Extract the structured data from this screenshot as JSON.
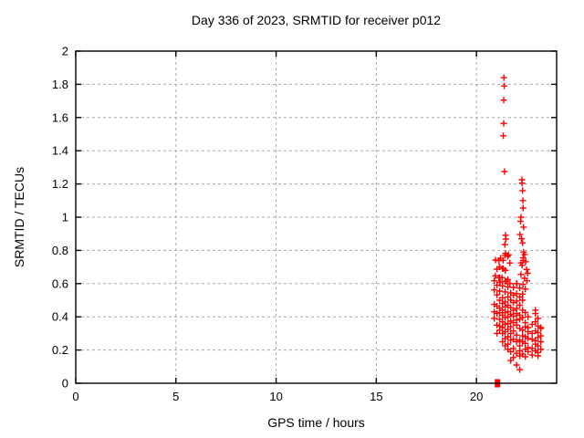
{
  "chart_data": {
    "type": "scatter",
    "title": "Day 336 of 2023, SRMTID for receiver p012",
    "xlabel": "GPS time / hours",
    "ylabel": "SRMTID / TECUs",
    "xlim": [
      0,
      24
    ],
    "ylim": [
      0,
      2
    ],
    "grid": true,
    "legend": "none",
    "marker": "plus",
    "marker_color": "#ff0000",
    "grid_color": "#a8a8a8",
    "axis_color": "#000000",
    "x_ticks": [
      {
        "value": 0,
        "label": "0"
      },
      {
        "value": 5,
        "label": "5"
      },
      {
        "value": 10,
        "label": "10"
      },
      {
        "value": 15,
        "label": "15"
      },
      {
        "value": 20,
        "label": "20"
      }
    ],
    "y_ticks": [
      {
        "value": 0,
        "label": "0"
      },
      {
        "value": 0.2,
        "label": "0.2"
      },
      {
        "value": 0.4,
        "label": "0.4"
      },
      {
        "value": 0.6,
        "label": "0.6"
      },
      {
        "value": 0.8,
        "label": "0.8"
      },
      {
        "value": 1,
        "label": "1"
      },
      {
        "value": 1.2,
        "label": "1.2"
      },
      {
        "value": 1.4,
        "label": "1.4"
      },
      {
        "value": 1.6,
        "label": "1.6"
      },
      {
        "value": 1.8,
        "label": "1.8"
      },
      {
        "value": 2,
        "label": "2"
      }
    ],
    "zero_marker": [
      21.05,
      0.0
    ],
    "series": [
      {
        "name": "SRMTID",
        "points": [
          [
            21.37,
            1.84
          ],
          [
            21.38,
            1.79
          ],
          [
            21.36,
            1.705
          ],
          [
            21.36,
            1.565
          ],
          [
            21.34,
            1.49
          ],
          [
            21.4,
            1.275
          ],
          [
            22.27,
            1.225
          ],
          [
            22.28,
            1.205
          ],
          [
            22.3,
            1.16
          ],
          [
            22.32,
            1.1
          ],
          [
            22.33,
            1.055
          ],
          [
            22.22,
            1.0
          ],
          [
            22.2,
            0.975
          ],
          [
            22.35,
            0.94
          ],
          [
            22.17,
            0.895
          ],
          [
            22.25,
            0.87
          ],
          [
            22.3,
            0.845
          ],
          [
            22.35,
            0.79
          ],
          [
            22.4,
            0.775
          ],
          [
            22.33,
            0.755
          ],
          [
            22.34,
            0.74
          ],
          [
            22.45,
            0.732
          ],
          [
            22.22,
            0.725
          ],
          [
            22.28,
            0.71
          ],
          [
            22.5,
            0.685
          ],
          [
            22.55,
            0.662
          ],
          [
            22.22,
            0.655
          ],
          [
            22.4,
            0.632
          ],
          [
            22.52,
            0.617
          ],
          [
            22.32,
            0.595
          ],
          [
            21.45,
            0.892
          ],
          [
            21.47,
            0.868
          ],
          [
            21.42,
            0.835
          ],
          [
            21.42,
            0.77
          ],
          [
            21.56,
            0.764
          ],
          [
            21.45,
            0.782
          ],
          [
            21.6,
            0.773
          ],
          [
            21.67,
            0.724
          ],
          [
            21.33,
            0.74
          ],
          [
            21.2,
            0.753
          ],
          [
            21.12,
            0.738
          ],
          [
            21.15,
            0.7
          ],
          [
            21.02,
            0.687
          ],
          [
            21.34,
            0.69
          ],
          [
            21.44,
            0.68
          ],
          [
            20.95,
            0.742
          ],
          [
            20.94,
            0.647
          ],
          [
            21.11,
            0.636
          ],
          [
            21.27,
            0.636
          ],
          [
            21.5,
            0.614
          ],
          [
            21.18,
            0.608
          ],
          [
            21.67,
            0.6
          ],
          [
            22.02,
            0.6
          ],
          [
            21.57,
            0.625
          ],
          [
            20.89,
            0.617
          ],
          [
            20.89,
            0.562
          ],
          [
            20.89,
            0.475
          ],
          [
            20.89,
            0.43
          ],
          [
            20.89,
            0.39
          ],
          [
            21.02,
            0.59
          ],
          [
            21.02,
            0.532
          ],
          [
            21.02,
            0.465
          ],
          [
            21.02,
            0.42
          ],
          [
            21.02,
            0.35
          ],
          [
            21.02,
            0.3
          ],
          [
            21.16,
            0.7
          ],
          [
            21.16,
            0.636
          ],
          [
            21.16,
            0.608
          ],
          [
            21.16,
            0.555
          ],
          [
            21.16,
            0.5
          ],
          [
            21.16,
            0.452
          ],
          [
            21.16,
            0.425
          ],
          [
            21.16,
            0.385
          ],
          [
            21.16,
            0.345
          ],
          [
            21.16,
            0.32
          ],
          [
            21.3,
            0.69
          ],
          [
            21.3,
            0.586
          ],
          [
            21.3,
            0.515
          ],
          [
            21.3,
            0.48
          ],
          [
            21.3,
            0.44
          ],
          [
            21.3,
            0.41
          ],
          [
            21.3,
            0.37
          ],
          [
            21.3,
            0.335
          ],
          [
            21.3,
            0.3
          ],
          [
            21.3,
            0.25
          ],
          [
            21.43,
            0.68
          ],
          [
            21.43,
            0.614
          ],
          [
            21.43,
            0.55
          ],
          [
            21.43,
            0.49
          ],
          [
            21.43,
            0.46
          ],
          [
            21.43,
            0.425
          ],
          [
            21.43,
            0.395
          ],
          [
            21.43,
            0.355
          ],
          [
            21.43,
            0.31
          ],
          [
            21.43,
            0.27
          ],
          [
            21.43,
            0.225
          ],
          [
            21.57,
            0.58
          ],
          [
            21.57,
            0.52
          ],
          [
            21.57,
            0.47
          ],
          [
            21.57,
            0.43
          ],
          [
            21.57,
            0.4
          ],
          [
            21.57,
            0.36
          ],
          [
            21.57,
            0.325
          ],
          [
            21.57,
            0.28
          ],
          [
            21.57,
            0.235
          ],
          [
            21.57,
            0.205
          ],
          [
            21.71,
            0.544
          ],
          [
            21.71,
            0.5
          ],
          [
            21.71,
            0.455
          ],
          [
            21.71,
            0.415
          ],
          [
            21.71,
            0.375
          ],
          [
            21.71,
            0.34
          ],
          [
            21.71,
            0.3
          ],
          [
            21.71,
            0.26
          ],
          [
            21.71,
            0.19
          ],
          [
            21.71,
            0.137
          ],
          [
            21.84,
            0.577
          ],
          [
            21.84,
            0.53
          ],
          [
            21.84,
            0.485
          ],
          [
            21.84,
            0.44
          ],
          [
            21.84,
            0.405
          ],
          [
            21.84,
            0.365
          ],
          [
            21.84,
            0.315
          ],
          [
            21.84,
            0.265
          ],
          [
            21.84,
            0.21
          ],
          [
            21.84,
            0.155
          ],
          [
            22.0,
            0.6
          ],
          [
            22.0,
            0.54
          ],
          [
            22.0,
            0.495
          ],
          [
            22.0,
            0.45
          ],
          [
            22.0,
            0.42
          ],
          [
            22.0,
            0.38
          ],
          [
            22.0,
            0.35
          ],
          [
            22.0,
            0.29
          ],
          [
            22.0,
            0.25
          ],
          [
            22.0,
            0.18
          ],
          [
            22.0,
            0.11
          ],
          [
            22.16,
            0.573
          ],
          [
            22.16,
            0.52
          ],
          [
            22.16,
            0.47
          ],
          [
            22.16,
            0.41
          ],
          [
            22.16,
            0.385
          ],
          [
            22.16,
            0.33
          ],
          [
            22.16,
            0.26
          ],
          [
            22.16,
            0.225
          ],
          [
            22.16,
            0.195
          ],
          [
            22.16,
            0.165
          ],
          [
            22.16,
            0.082
          ],
          [
            22.3,
            0.537
          ],
          [
            22.3,
            0.5
          ],
          [
            22.3,
            0.44
          ],
          [
            22.3,
            0.395
          ],
          [
            22.3,
            0.32
          ],
          [
            22.3,
            0.285
          ],
          [
            22.3,
            0.25
          ],
          [
            22.3,
            0.175
          ],
          [
            22.44,
            0.567
          ],
          [
            22.44,
            0.425
          ],
          [
            22.44,
            0.365
          ],
          [
            22.44,
            0.34
          ],
          [
            22.44,
            0.28
          ],
          [
            22.44,
            0.24
          ],
          [
            22.44,
            0.205
          ],
          [
            22.44,
            0.16
          ],
          [
            22.57,
            0.4
          ],
          [
            22.57,
            0.335
          ],
          [
            22.57,
            0.31
          ],
          [
            22.57,
            0.27
          ],
          [
            22.57,
            0.215
          ],
          [
            22.57,
            0.19
          ],
          [
            22.78,
            0.355
          ],
          [
            22.78,
            0.3
          ],
          [
            22.78,
            0.265
          ],
          [
            22.78,
            0.21
          ],
          [
            22.78,
            0.17
          ],
          [
            22.94,
            0.44
          ],
          [
            22.94,
            0.42
          ],
          [
            22.94,
            0.37
          ],
          [
            22.94,
            0.315
          ],
          [
            22.94,
            0.255
          ],
          [
            22.94,
            0.235
          ],
          [
            22.94,
            0.195
          ],
          [
            23.07,
            0.39
          ],
          [
            23.07,
            0.345
          ],
          [
            23.07,
            0.305
          ],
          [
            23.07,
            0.275
          ],
          [
            23.07,
            0.225
          ],
          [
            23.07,
            0.185
          ],
          [
            23.07,
            0.165
          ],
          [
            23.21,
            0.335
          ],
          [
            23.21,
            0.33
          ],
          [
            23.21,
            0.285
          ],
          [
            23.21,
            0.25
          ],
          [
            23.21,
            0.205
          ]
        ]
      }
    ]
  }
}
